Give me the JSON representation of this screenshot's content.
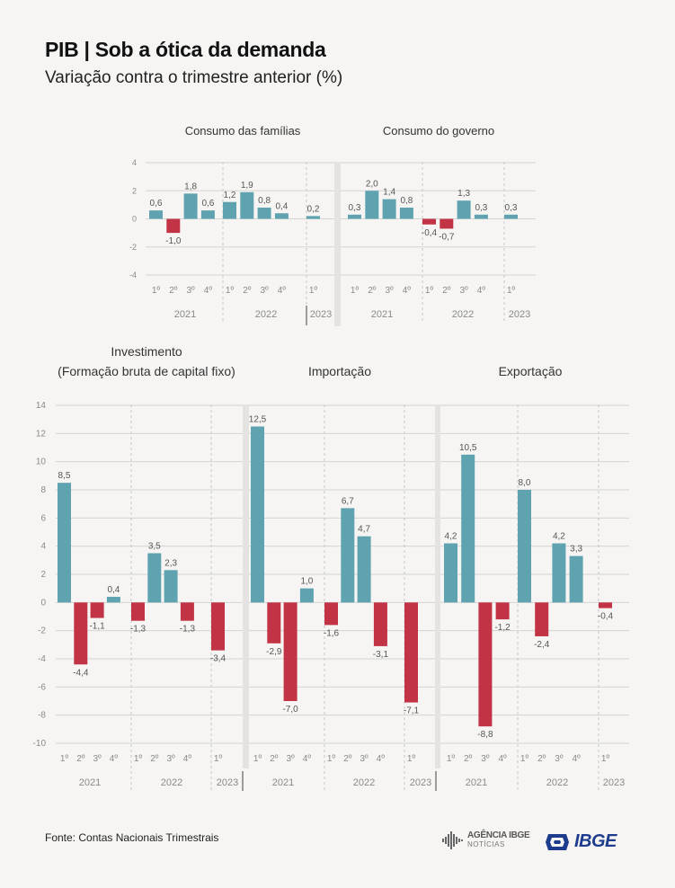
{
  "title": "PIB | Sob a ótica da demanda",
  "subtitle": "Variação contra o trimestre anterior (%)",
  "source": "Fonte: Contas Nacionais Trimestrais",
  "logos": {
    "agencia_name": "AGÊNCIA IBGE",
    "agencia_sub": "NOTÍCIAS",
    "ibge_name": "IBGE"
  },
  "colors": {
    "positive": "#5fa3b1",
    "negative": "#c23445",
    "grid": "#d3d3d3",
    "axis_text": "#8a8a8a",
    "label_text": "#555555"
  },
  "quarter_labels": [
    "1º",
    "2º",
    "3º",
    "4º",
    "1º",
    "2º",
    "3º",
    "4º",
    "1º"
  ],
  "year_labels": [
    "2021",
    "2022",
    "2023"
  ],
  "chart_data": [
    {
      "type": "bar",
      "title": "Consumo das famílias",
      "categories": [
        "2021 1º",
        "2021 2º",
        "2021 3º",
        "2021 4º",
        "2022 1º",
        "2022 2º",
        "2022 3º",
        "2022 4º",
        "2023 1º"
      ],
      "values": [
        0.6,
        -1.0,
        1.8,
        0.6,
        1.2,
        1.9,
        0.8,
        0.4,
        0.2
      ],
      "value_labels": [
        "0,6",
        "-1,0",
        "1,8",
        "0,6",
        "1,2",
        "1,9",
        "0,8",
        "0,4",
        "0,2"
      ],
      "ylim": [
        -4,
        4
      ],
      "yticks": [
        4,
        2,
        0,
        -2,
        -4
      ]
    },
    {
      "type": "bar",
      "title": "Consumo do governo",
      "categories": [
        "2021 1º",
        "2021 2º",
        "2021 3º",
        "2021 4º",
        "2022 1º",
        "2022 2º",
        "2022 3º",
        "2022 4º",
        "2023 1º"
      ],
      "values": [
        0.3,
        2.0,
        1.4,
        0.8,
        -0.4,
        -0.7,
        1.3,
        0.3,
        0.3
      ],
      "value_labels": [
        "0,3",
        "2,0",
        "1,4",
        "0,8",
        "-0,4",
        "-0,7",
        "1,3",
        "0,3",
        "0,3"
      ],
      "ylim": [
        -4,
        4
      ]
    },
    {
      "type": "bar",
      "title": "Investimento",
      "title_line2": "(Formação bruta de capital fixo)",
      "categories": [
        "2021 1º",
        "2021 2º",
        "2021 3º",
        "2021 4º",
        "2022 1º",
        "2022 2º",
        "2022 3º",
        "2022 4º",
        "2023 1º"
      ],
      "values": [
        8.5,
        -4.4,
        -1.1,
        0.4,
        -1.3,
        3.5,
        2.3,
        -1.3,
        -3.4
      ],
      "value_labels": [
        "8,5",
        "-4,4",
        "-1,1",
        "0,4",
        "-1,3",
        "3,5",
        "2,3",
        "-1,3",
        "-3,4"
      ],
      "ylim": [
        -10,
        14
      ],
      "yticks": [
        14,
        12,
        10,
        8,
        6,
        4,
        2,
        0,
        -2,
        -4,
        -6,
        -8,
        -10
      ]
    },
    {
      "type": "bar",
      "title": "Importação",
      "categories": [
        "2021 1º",
        "2021 2º",
        "2021 3º",
        "2021 4º",
        "2022 1º",
        "2022 2º",
        "2022 3º",
        "2022 4º",
        "2023 1º"
      ],
      "values": [
        12.5,
        -2.9,
        -7.0,
        1.0,
        -1.6,
        6.7,
        4.7,
        -3.1,
        -7.1
      ],
      "value_labels": [
        "12,5",
        "-2,9",
        "-7,0",
        "1,0",
        "-1,6",
        "6,7",
        "4,7",
        "-3,1",
        "-7,1"
      ],
      "ylim": [
        -10,
        14
      ]
    },
    {
      "type": "bar",
      "title": "Exportação",
      "categories": [
        "2021 1º",
        "2021 2º",
        "2021 3º",
        "2021 4º",
        "2022 1º",
        "2022 2º",
        "2022 3º",
        "2022 4º",
        "2023 1º"
      ],
      "values": [
        4.2,
        10.5,
        -8.8,
        -1.2,
        8.0,
        -2.4,
        4.2,
        3.3,
        -0.4
      ],
      "value_labels": [
        "4,2",
        "10,5",
        "-8,8",
        "-1,2",
        "8,0",
        "-2,4",
        "4,2",
        "3,3",
        "-0,4"
      ],
      "ylim": [
        -10,
        14
      ]
    }
  ]
}
